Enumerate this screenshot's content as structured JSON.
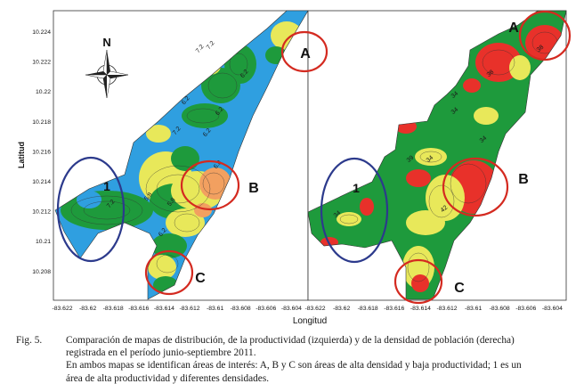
{
  "figure": {
    "y_axis_title": "Latitud",
    "x_axis_title": "Longitud",
    "y_ticks": [
      "10.224",
      "10.222",
      "10.22",
      "10.218",
      "10.216",
      "10.214",
      "10.212",
      "10.21",
      "10.208"
    ],
    "x_ticks_left": [
      "-83.622",
      "-83.62",
      "-83.618",
      "-83.616",
      "-83.614",
      "-83.612",
      "-83.61",
      "-83.608",
      "-83.606",
      "-83.604"
    ],
    "x_ticks_right": [
      "-83.622",
      "-83.62",
      "-83.618",
      "-83.616",
      "-83.614",
      "-83.612",
      "-83.61",
      "-83.608",
      "-83.606",
      "-83.604"
    ],
    "compass_label": "N",
    "markers_left": {
      "a": "A",
      "b": "B",
      "c": "C",
      "one": "1"
    },
    "markers_right": {
      "a": "A",
      "b": "B",
      "c": "C",
      "one": "1"
    },
    "contour_labels_left": [
      "7.2",
      "7.2",
      "7.2",
      "6.2",
      "6.2",
      "6.8",
      "5.8",
      "7.2",
      "6.2",
      "5.8",
      "6.2",
      "6.2"
    ],
    "contour_labels_right": [
      "38",
      "38",
      "34",
      "39",
      "34",
      "34",
      "34",
      "34",
      "42"
    ],
    "colors": {
      "productivity_high": "#2f9fe0",
      "productivity_mid": "#1e9a3c",
      "productivity_low": "#e8e85a",
      "productivity_lowest": "#f2a060",
      "density_high": "#e8312a",
      "density_mid": "#e8e85a",
      "density_low": "#1e9a3c",
      "circle_interest": "#d42a20",
      "circle_one": "#2c3a8c"
    }
  },
  "caption": {
    "label": "Fig. 5.",
    "line1": "Comparación de mapas de distribución, de la productividad (izquierda) y de la densidad de población (derecha)",
    "line2": "registrada en el período junio-septiembre 2011.",
    "line3": "En ambos mapas se identifican áreas de interés: A, B y C son áreas de alta densidad y baja productividad; 1 es un",
    "line4": "área de alta productividad y diferentes densidades."
  }
}
